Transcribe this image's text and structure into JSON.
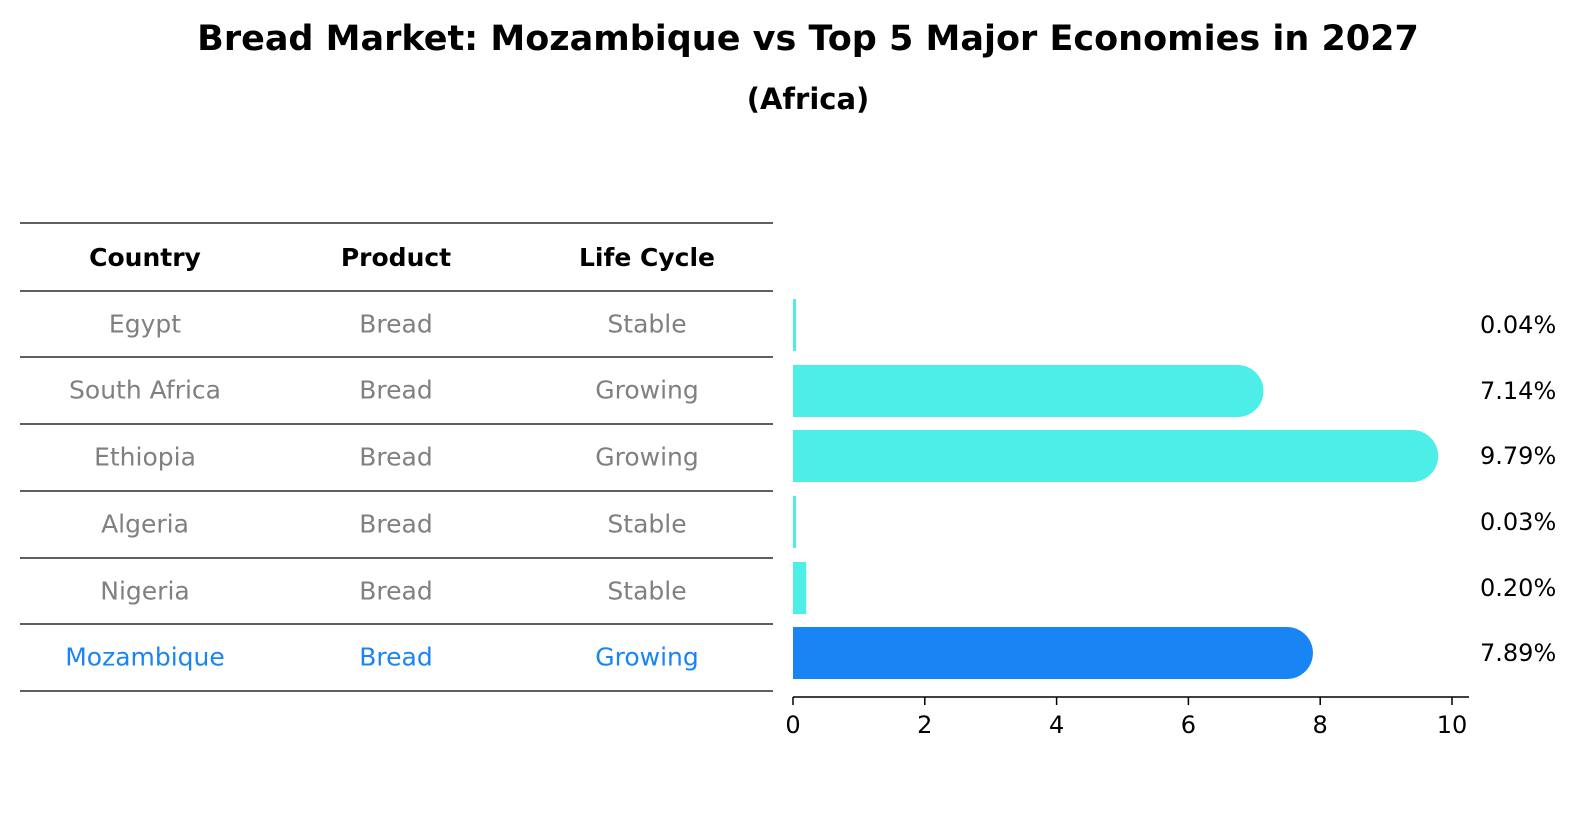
{
  "chart_data": {
    "type": "bar",
    "orientation": "horizontal",
    "title": "Bread Market: Mozambique vs Top 5 Major Economies in 2027",
    "subtitle": "(Africa)",
    "table": {
      "columns": [
        "Country",
        "Product",
        "Life Cycle"
      ],
      "rows": [
        [
          "Egypt",
          "Bread",
          "Stable"
        ],
        [
          "South Africa",
          "Bread",
          "Growing"
        ],
        [
          "Ethiopia",
          "Bread",
          "Growing"
        ],
        [
          "Algeria",
          "Bread",
          "Stable"
        ],
        [
          "Nigeria",
          "Bread",
          "Stable"
        ],
        [
          "Mozambique",
          "Bread",
          "Growing"
        ]
      ]
    },
    "categories": [
      "Egypt",
      "South Africa",
      "Ethiopia",
      "Algeria",
      "Nigeria",
      "Mozambique"
    ],
    "values": [
      0.04,
      7.14,
      9.79,
      0.03,
      0.2,
      7.89
    ],
    "value_labels": [
      "0.04%",
      "7.14%",
      "9.79%",
      "0.03%",
      "0.20%",
      "7.89%"
    ],
    "highlight_index": 5,
    "xlim": [
      0,
      10.2
    ],
    "xticks": [
      0,
      2,
      4,
      6,
      8,
      10
    ],
    "grid": false,
    "colors": {
      "bar": "#4dede8",
      "highlight_bar": "#1985f5",
      "row_text": "#808080",
      "highlight_text": "#1985f5",
      "rule": "#000000"
    }
  }
}
